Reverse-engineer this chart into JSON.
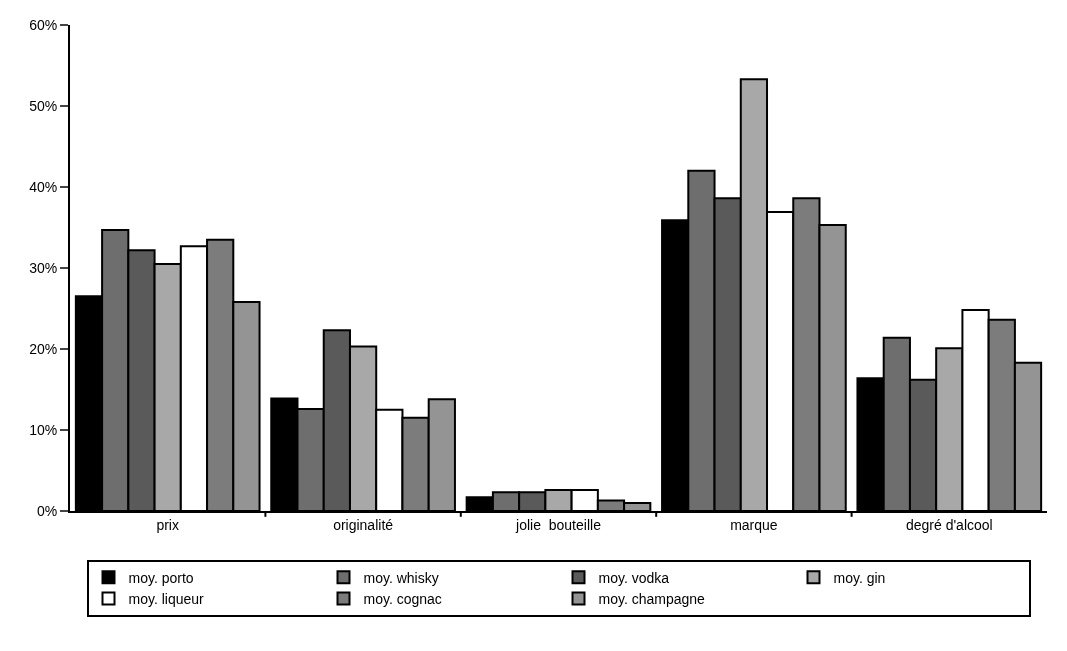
{
  "chart_data": {
    "type": "bar",
    "categories": [
      "prix",
      "originalité",
      "jolie  bouteille",
      "marque",
      "degré d'alcool"
    ],
    "series": [
      {
        "name": "moy. porto",
        "color": "#000000",
        "values": [
          26.5,
          13.9,
          1.7,
          35.9,
          16.4
        ]
      },
      {
        "name": "moy. whisky",
        "color": "#6e6e6e",
        "values": [
          34.7,
          12.6,
          2.3,
          42.0,
          21.4
        ]
      },
      {
        "name": "moy. vodka",
        "color": "#5a5a5a",
        "values": [
          32.2,
          22.3,
          2.3,
          38.6,
          16.2
        ]
      },
      {
        "name": "moy. gin",
        "color": "#a8a8a8",
        "values": [
          30.5,
          20.3,
          2.6,
          53.3,
          20.1
        ]
      },
      {
        "name": "moy. liqueur",
        "color": "#ffffff",
        "values": [
          32.7,
          12.5,
          2.6,
          36.9,
          24.8
        ]
      },
      {
        "name": "moy. cognac",
        "color": "#7c7c7c",
        "values": [
          33.5,
          11.5,
          1.3,
          38.6,
          23.6
        ]
      },
      {
        "name": "moy. champagne",
        "color": "#949494",
        "values": [
          25.8,
          13.8,
          1.0,
          35.3,
          18.3
        ]
      }
    ],
    "ylim": [
      0,
      60
    ],
    "yticks": [
      {
        "value": 0,
        "label": "0%"
      },
      {
        "value": 10,
        "label": "10%"
      },
      {
        "value": 20,
        "label": "20%"
      },
      {
        "value": 30,
        "label": "30%"
      },
      {
        "value": 40,
        "label": "40%"
      },
      {
        "value": 50,
        "label": "50%"
      },
      {
        "value": 60,
        "label": "60%"
      }
    ],
    "grid": false,
    "legend": "bottom"
  }
}
